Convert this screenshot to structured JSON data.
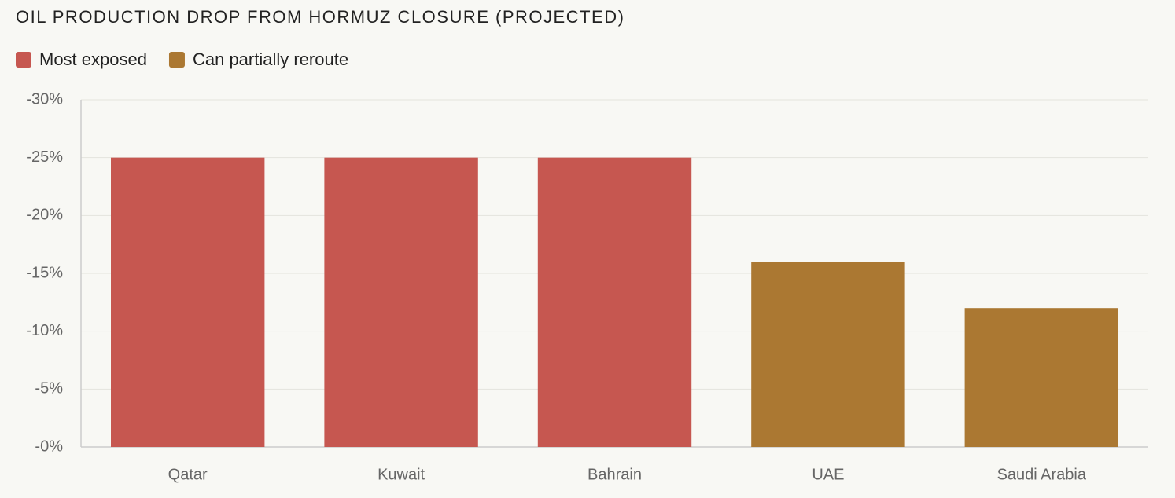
{
  "chart_data": {
    "type": "bar",
    "title": "OIL PRODUCTION DROP FROM HORMUZ CLOSURE (PROJECTED)",
    "categories": [
      "Qatar",
      "Kuwait",
      "Bahrain",
      "UAE",
      "Saudi Arabia"
    ],
    "series": [
      {
        "name": "Most exposed",
        "color": "#c65750",
        "values": [
          -25,
          -25,
          -25,
          null,
          null
        ]
      },
      {
        "name": "Can partially reroute",
        "color": "#ab7832",
        "values": [
          null,
          null,
          null,
          -16,
          -12
        ]
      }
    ],
    "ylim": [
      0,
      -30
    ],
    "yticks": [
      {
        "value": 0,
        "label": "-0%"
      },
      {
        "value": -5,
        "label": "-5%"
      },
      {
        "value": -10,
        "label": "-10%"
      },
      {
        "value": -15,
        "label": "-15%"
      },
      {
        "value": -20,
        "label": "-20%"
      },
      {
        "value": -25,
        "label": "-25%"
      },
      {
        "value": -30,
        "label": "-30%"
      }
    ],
    "grid": true
  }
}
